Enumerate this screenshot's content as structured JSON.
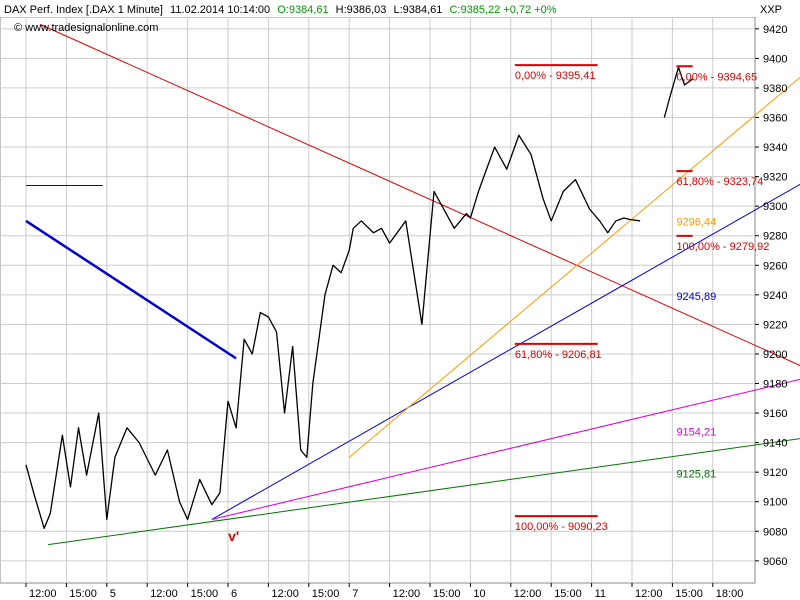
{
  "header": {
    "instrument": "DAX Perf. Index [.DAX  1 Minute]",
    "datetime": "11.02.2014 10:14:00",
    "open": "O:9384,61",
    "high": "H:9386,03",
    "low": "L:9384,61",
    "close_change": "C:9385,22 +0,72 +0%",
    "exchange": "XXP",
    "watermark": "© www.tradesignalonline.com"
  },
  "colors": {
    "price": "#000000",
    "grid": "#cccccc",
    "red": "#dd0000",
    "blue": "#0000cc",
    "orange": "#ff9900",
    "magenta": "#dd00dd",
    "green": "#007700",
    "header_green": "#009900"
  },
  "chart_data": {
    "type": "line",
    "ylim": [
      9045,
      9428
    ],
    "y_ticks": [
      9060,
      9080,
      9100,
      9120,
      9140,
      9160,
      9180,
      9200,
      9220,
      9240,
      9260,
      9280,
      9300,
      9320,
      9340,
      9360,
      9380,
      9400,
      9420
    ],
    "x_ticks": [
      {
        "label": "12:00",
        "i": 0
      },
      {
        "label": "15:00",
        "i": 1
      },
      {
        "label": "5",
        "i": 2
      },
      {
        "label": "12:00",
        "i": 3
      },
      {
        "label": "15:00",
        "i": 4
      },
      {
        "label": "6",
        "i": 5
      },
      {
        "label": "12:00",
        "i": 6
      },
      {
        "label": "15:00",
        "i": 7
      },
      {
        "label": "7",
        "i": 8
      },
      {
        "label": "12:00",
        "i": 9
      },
      {
        "label": "15:00",
        "i": 10
      },
      {
        "label": "10",
        "i": 11
      },
      {
        "label": "12:00",
        "i": 12
      },
      {
        "label": "15:00",
        "i": 13
      },
      {
        "label": "11",
        "i": 14
      },
      {
        "label": "12:00",
        "i": 15
      },
      {
        "label": "15:00",
        "i": 16
      },
      {
        "label": "18:00",
        "i": 17
      }
    ],
    "price_series": {
      "x": [
        0,
        0.2,
        0.45,
        0.6,
        0.9,
        1.1,
        1.3,
        1.5,
        1.8,
        2.0,
        2.2,
        2.5,
        2.8,
        3.2,
        3.5,
        3.8,
        4.0,
        4.3,
        4.6,
        4.8,
        5.0,
        5.2,
        5.4,
        5.6,
        5.8,
        6.0,
        6.2,
        6.4,
        6.6,
        6.8,
        6.95,
        7.1,
        7.2,
        7.4,
        7.6,
        7.8,
        8.0,
        8.1,
        8.3,
        8.6,
        8.8,
        9.0,
        9.4,
        9.8,
        10.1,
        10.3,
        10.6,
        10.9,
        11.0,
        11.2,
        11.6,
        11.9,
        12.2,
        12.5,
        12.8,
        13.0,
        13.3,
        13.6,
        13.95,
        14.2,
        14.4,
        14.6,
        14.8,
        14.95,
        15.2
      ],
      "y": [
        9125,
        9105,
        9082,
        9092,
        9145,
        9110,
        9150,
        9118,
        9160,
        9088,
        9130,
        9150,
        9140,
        9118,
        9135,
        9100,
        9088,
        9115,
        9098,
        9106,
        9168,
        9150,
        9210,
        9200,
        9228,
        9225,
        9215,
        9160,
        9205,
        9135,
        9130,
        9180,
        9200,
        9240,
        9260,
        9255,
        9270,
        9285,
        9290,
        9282,
        9285,
        9275,
        9290,
        9220,
        9310,
        9300,
        9285,
        9295,
        9292,
        9310,
        9340,
        9325,
        9348,
        9335,
        9305,
        9290,
        9310,
        9318,
        9298,
        9290,
        9282,
        9290,
        9292,
        9291,
        9290
      ]
    },
    "gap_segment": {
      "x": [
        15.8,
        15.95,
        16.15,
        16.3,
        16.5
      ],
      "y": [
        9360,
        9375,
        9394,
        9382,
        9386
      ]
    },
    "trendlines": [
      {
        "color": "red",
        "x": [
          0.35,
          19.5
        ],
        "y": [
          9423,
          9188
        ]
      },
      {
        "color": "blue",
        "x": [
          4.6,
          19.5
        ],
        "y": [
          9088,
          9320
        ]
      },
      {
        "color": "orange",
        "x": [
          8.0,
          19.5
        ],
        "y": [
          9130,
          9395
        ]
      },
      {
        "color": "magenta",
        "x": [
          4.6,
          19.5
        ],
        "y": [
          9088,
          9185
        ]
      },
      {
        "color": "green",
        "x": [
          0.55,
          19.5
        ],
        "y": [
          9071,
          9144
        ]
      },
      {
        "color": "blue_thick",
        "x": [
          0,
          5.2
        ],
        "y": [
          9290,
          9197
        ]
      },
      {
        "color": "blue",
        "x": [
          0,
          1.9
        ],
        "y": [
          9314,
          9314
        ]
      }
    ],
    "fib_lines": [
      {
        "color": "red",
        "x": [
          12.1,
          14.15
        ],
        "y": 9395.41
      },
      {
        "color": "red",
        "x": [
          12.1,
          14.15
        ],
        "y": 9206.81
      },
      {
        "color": "red",
        "x": [
          12.1,
          14.15
        ],
        "y": 9090.23
      },
      {
        "color": "red",
        "x": [
          16.1,
          16.5
        ],
        "y": 9394.65
      },
      {
        "color": "red",
        "x": [
          16.1,
          16.5
        ],
        "y": 9323.74
      },
      {
        "color": "red",
        "x": [
          16.1,
          16.5
        ],
        "y": 9279.92
      }
    ],
    "annotations": [
      {
        "text": "0,00% - 9395,41",
        "color": "red",
        "x": 12.1,
        "y": 9395.41
      },
      {
        "text": "61,80% - 9206,81",
        "color": "red",
        "x": 12.1,
        "y": 9206.81
      },
      {
        "text": "100,00% - 9090,23",
        "color": "red",
        "x": 12.1,
        "y": 9090.23
      },
      {
        "text": "0,00% - 9394,65",
        "color": "red",
        "x": 16.1,
        "y": 9394.65
      },
      {
        "text": "61,80% - 9323,74",
        "color": "red",
        "x": 16.1,
        "y": 9323.74
      },
      {
        "text": "100,00% - 9279,92",
        "color": "red",
        "x": 16.1,
        "y": 9279.92
      },
      {
        "text": "9296,44",
        "color": "orange",
        "x": 16.1,
        "y": 9296.44
      },
      {
        "text": "9245,89",
        "color": "blue",
        "x": 16.1,
        "y": 9245.89
      },
      {
        "text": "9154,21",
        "color": "magenta",
        "x": 16.1,
        "y": 9154.21
      },
      {
        "text": "9125,81",
        "color": "green",
        "x": 16.1,
        "y": 9125.81
      }
    ],
    "marker": {
      "text": "v'",
      "color": "red",
      "x": 5.2,
      "y": 9083
    }
  }
}
